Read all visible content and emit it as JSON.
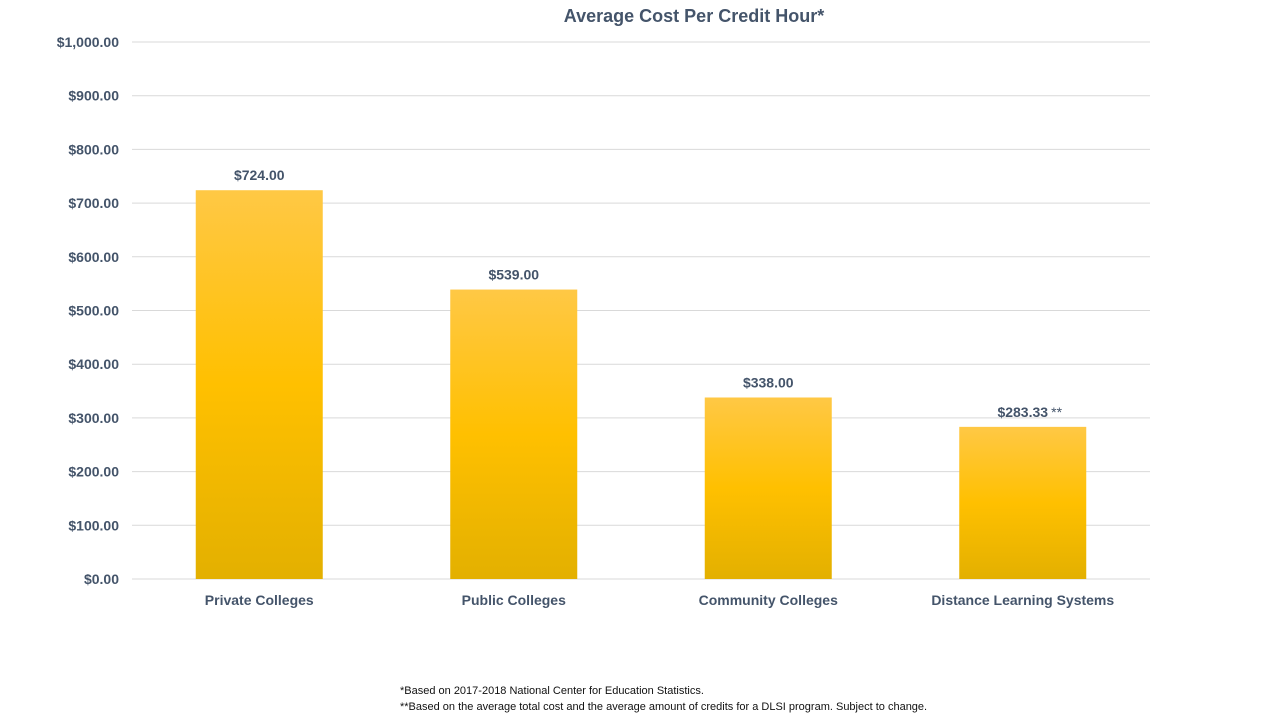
{
  "chart_data": {
    "type": "bar",
    "title": "Average Cost Per Credit Hour*",
    "categories": [
      "Private Colleges",
      "Public Colleges",
      "Community Colleges",
      "Distance Learning Systems"
    ],
    "values": [
      724.0,
      539.0,
      338.0,
      283.33
    ],
    "data_labels": [
      "$724.00",
      "$539.00",
      "$338.00",
      "$283.33"
    ],
    "data_label_suffixes": [
      "",
      "",
      "",
      "**"
    ],
    "y_ticks": [
      0,
      100,
      200,
      300,
      400,
      500,
      600,
      700,
      800,
      900,
      1000
    ],
    "y_tick_labels": [
      "$0.00",
      "$100.00",
      "$200.00",
      "$300.00",
      "$400.00",
      "$500.00",
      "$600.00",
      "$700.00",
      "$800.00",
      "$900.00",
      "$1,000.00"
    ],
    "ylim": [
      0,
      1000
    ],
    "xlabel": "",
    "ylabel": "",
    "grid": true,
    "legend": "none"
  },
  "colors": {
    "bar_top": "#ffc845",
    "bar_mid": "#ffc000",
    "bar_bottom": "#e3b000",
    "text": "#44546a",
    "grid": "#d9d9d9"
  },
  "footnotes": {
    "line1": "*Based on 2017-2018 National Center for Education Statistics.",
    "line2": "**Based on the average total cost and the average amount of credits for a DLSI program. Subject to change."
  }
}
